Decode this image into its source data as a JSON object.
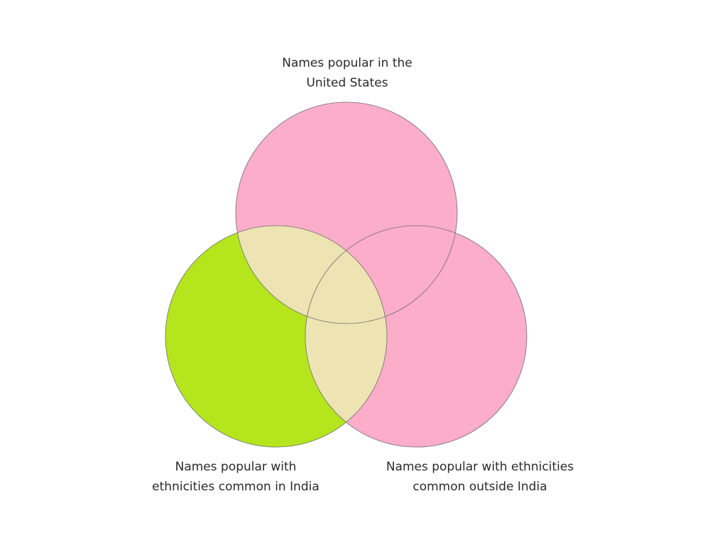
{
  "diagram": {
    "type": "venn-3",
    "colors": {
      "set_us": "#fcadca",
      "set_india": "#b5e61d",
      "overlap": "#eee3b3",
      "outline": "#6e6e6e",
      "text": "#2a2a2a"
    },
    "sets": [
      {
        "id": "us",
        "label_line1": "Names popular in the",
        "label_line2": "United States"
      },
      {
        "id": "india",
        "label_line1": "Names popular with",
        "label_line2": "ethnicities common in India"
      },
      {
        "id": "outside_india",
        "label_line1": "Names popular with ethnicities",
        "label_line2": "common outside India"
      }
    ]
  }
}
